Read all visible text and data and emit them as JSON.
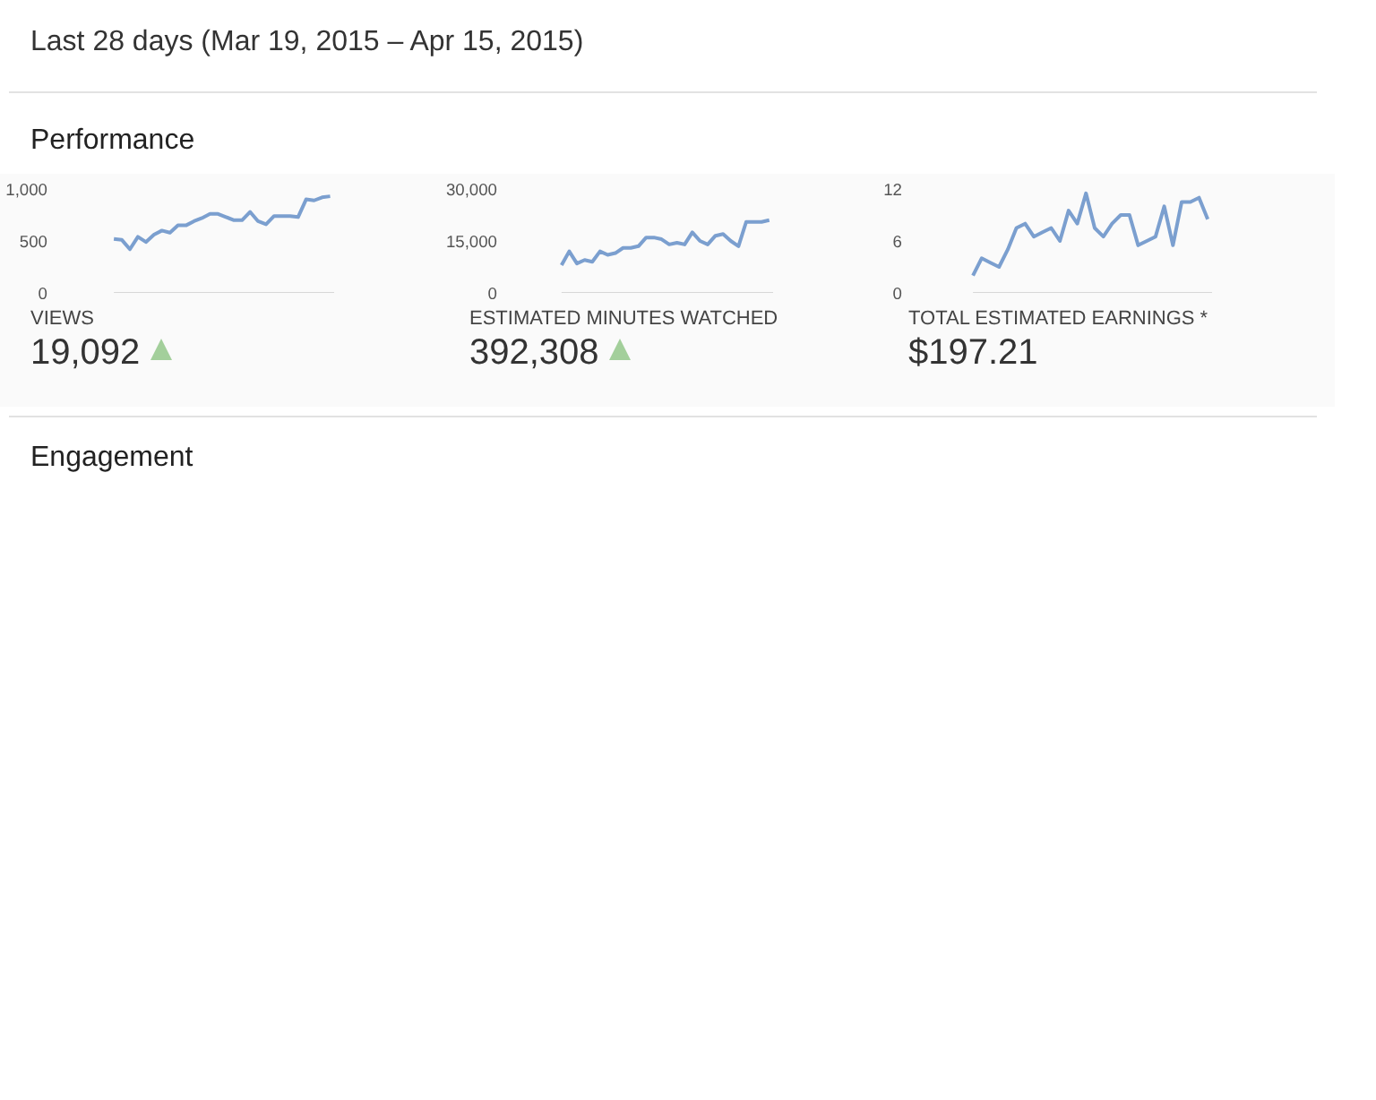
{
  "chart_data": [
    {
      "type": "other",
      "title": "Last 28 days (Mar 19, 2015 – Apr 15, 2015)",
      "annotations": [
        "Performance"
      ]
    },
    {
      "type": "line",
      "title": "VIEWS",
      "annotations": [
        "19,092"
      ],
      "categories": [
        null,
        null,
        null,
        null,
        null,
        null,
        null,
        null,
        null,
        null,
        null,
        null,
        null,
        null,
        null,
        null,
        null,
        null,
        null,
        null,
        null,
        null,
        null,
        null,
        null,
        null,
        null,
        null
      ],
      "series": [
        {
          "color": "#7b9fcf",
          "values": [
            520,
            510,
            420,
            540,
            490,
            560,
            600,
            580,
            650,
            650,
            690,
            720,
            760,
            760,
            730,
            700,
            700,
            780,
            690,
            660,
            740,
            740,
            740,
            730,
            900,
            890,
            920,
            930
          ]
        }
      ],
      "ylim": [
        0,
        1000
      ],
      "yticks": [
        0,
        500,
        {
          "value": 1000,
          "label": "1,000"
        }
      ],
      "tick_labels": "y",
      "grid": false
    },
    {
      "type": "line",
      "title": "ESTIMATED MINUTES WATCHED",
      "annotations": [
        "392,308"
      ],
      "categories": [
        null,
        null,
        null,
        null,
        null,
        null,
        null,
        null,
        null,
        null,
        null,
        null,
        null,
        null,
        null,
        null,
        null,
        null,
        null,
        null,
        null,
        null,
        null,
        null,
        null,
        null,
        null,
        null
      ],
      "series": [
        {
          "color": "#7b9fcf",
          "values": [
            8000,
            12000,
            8500,
            9500,
            9000,
            12000,
            11000,
            11500,
            13000,
            13000,
            13500,
            16000,
            16000,
            15500,
            14000,
            14500,
            14000,
            17500,
            15000,
            14000,
            16500,
            17000,
            15000,
            13500,
            20500,
            20500,
            20500,
            21000
          ]
        }
      ],
      "ylim": [
        0,
        30000
      ],
      "yticks": [
        0,
        {
          "value": 15000,
          "label": "15,000"
        },
        {
          "value": 30000,
          "label": "30,000"
        }
      ],
      "tick_labels": "y",
      "grid": false
    },
    {
      "type": "line",
      "title": "TOTAL ESTIMATED EARNINGS *",
      "annotations": [
        "$197.21"
      ],
      "categories": [
        null,
        null,
        null,
        null,
        null,
        null,
        null,
        null,
        null,
        null,
        null,
        null,
        null,
        null,
        null,
        null,
        null,
        null,
        null,
        null,
        null,
        null,
        null,
        null,
        null,
        null,
        null,
        null
      ],
      "series": [
        {
          "color": "#7b9fcf",
          "values": [
            2,
            4,
            3.5,
            3,
            5,
            7.5,
            8,
            6.5,
            7,
            7.5,
            6,
            9.5,
            8,
            11.5,
            7.5,
            6.5,
            8,
            9,
            9,
            5.5,
            6,
            6.5,
            10,
            5.5,
            10.5,
            10.5,
            11,
            8.5
          ]
        }
      ],
      "ylim": [
        0,
        12
      ],
      "yticks": [
        0,
        6,
        12
      ],
      "tick_labels": "y",
      "grid": false
    },
    {
      "type": "other",
      "title": "Engagement"
    }
  ]
}
